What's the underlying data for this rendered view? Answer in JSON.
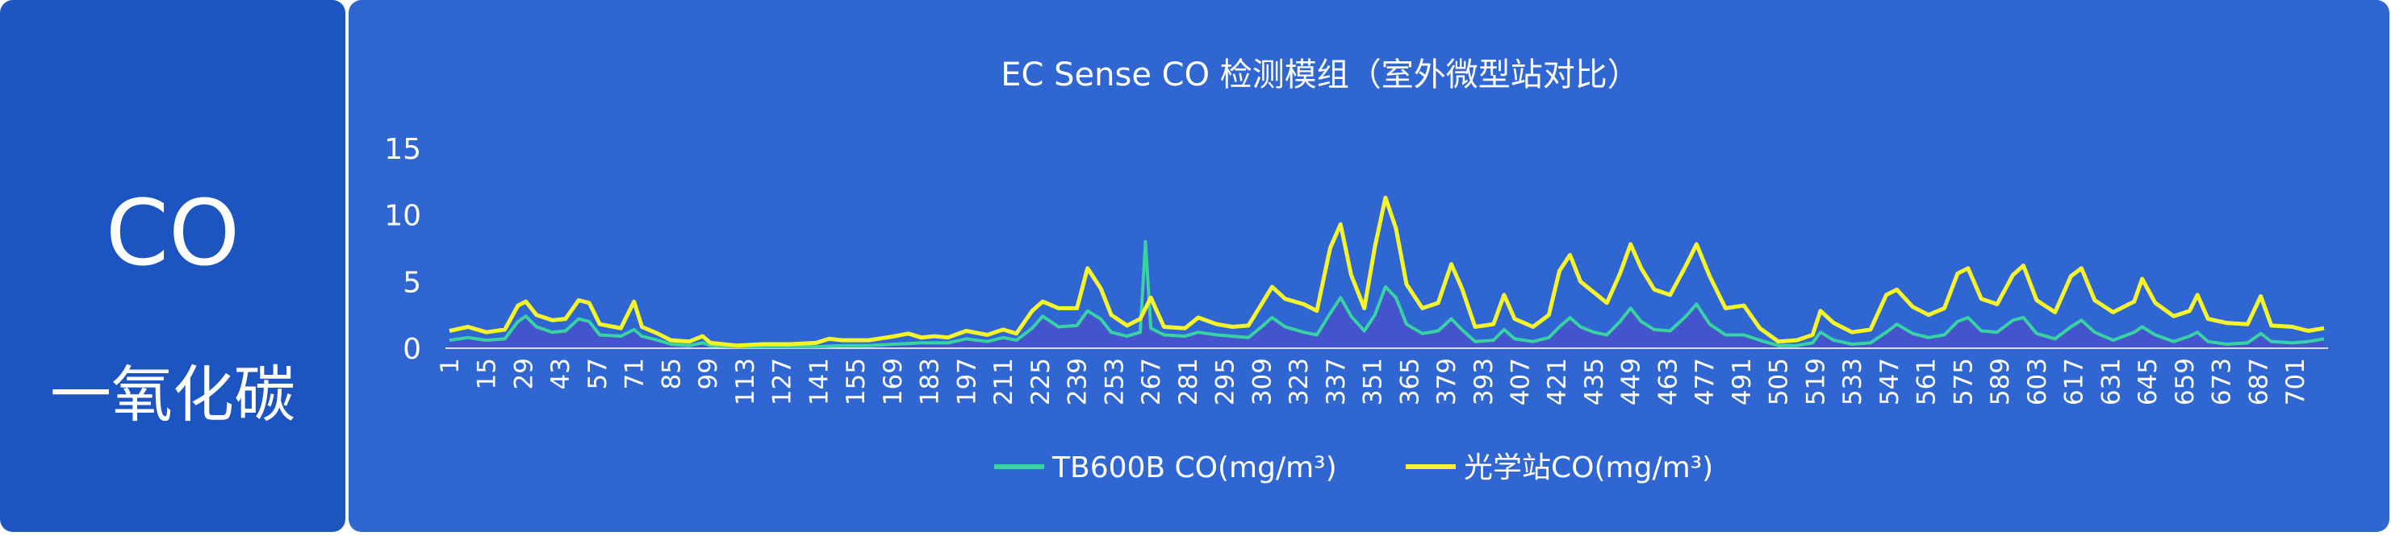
{
  "panel": {
    "code": "CO",
    "name": "一氧化碳"
  },
  "colors": {
    "left_panel": "#1c55c2",
    "chart_panel": "#2f66d2",
    "tb600b": "#39d3a3",
    "station": "#f5f52a",
    "fill": "#4b4fc9",
    "text": "#ffffff"
  },
  "chart_data": {
    "type": "line",
    "title": "EC Sense CO 检测模组（室外微型站对比）",
    "xlabel": "",
    "ylabel": "",
    "ylim": [
      0,
      15
    ],
    "y_ticks": [
      0,
      5,
      10,
      15
    ],
    "x_range": [
      1,
      712
    ],
    "x_ticks": [
      1,
      15,
      29,
      43,
      57,
      71,
      85,
      99,
      113,
      127,
      141,
      155,
      169,
      183,
      197,
      211,
      225,
      239,
      253,
      267,
      281,
      295,
      309,
      323,
      337,
      351,
      365,
      379,
      393,
      407,
      421,
      435,
      449,
      463,
      477,
      491,
      505,
      519,
      533,
      547,
      561,
      575,
      589,
      603,
      617,
      631,
      645,
      659,
      673,
      687,
      701
    ],
    "legend_position": "bottom",
    "grid": false,
    "series": [
      {
        "name": "TB600B CO(mg/m³)",
        "color": "#39d3a3",
        "fill": true,
        "points": [
          [
            1,
            0.6
          ],
          [
            8,
            0.8
          ],
          [
            15,
            0.6
          ],
          [
            22,
            0.7
          ],
          [
            27,
            2.0
          ],
          [
            30,
            2.4
          ],
          [
            34,
            1.6
          ],
          [
            40,
            1.2
          ],
          [
            45,
            1.3
          ],
          [
            50,
            2.2
          ],
          [
            54,
            2.0
          ],
          [
            58,
            1.0
          ],
          [
            66,
            0.9
          ],
          [
            71,
            1.4
          ],
          [
            74,
            0.9
          ],
          [
            80,
            0.6
          ],
          [
            85,
            0.3
          ],
          [
            92,
            0.2
          ],
          [
            97,
            0.4
          ],
          [
            100,
            0.2
          ],
          [
            110,
            0.1
          ],
          [
            120,
            0.1
          ],
          [
            130,
            0.1
          ],
          [
            140,
            0.1
          ],
          [
            150,
            0.2
          ],
          [
            160,
            0.2
          ],
          [
            170,
            0.3
          ],
          [
            180,
            0.4
          ],
          [
            190,
            0.4
          ],
          [
            197,
            0.7
          ],
          [
            205,
            0.5
          ],
          [
            211,
            0.8
          ],
          [
            216,
            0.6
          ],
          [
            222,
            1.5
          ],
          [
            226,
            2.4
          ],
          [
            232,
            1.6
          ],
          [
            239,
            1.7
          ],
          [
            243,
            2.8
          ],
          [
            248,
            2.2
          ],
          [
            252,
            1.2
          ],
          [
            258,
            0.9
          ],
          [
            263,
            1.2
          ],
          [
            265,
            8.0
          ],
          [
            267,
            1.5
          ],
          [
            272,
            1.0
          ],
          [
            280,
            0.9
          ],
          [
            285,
            1.2
          ],
          [
            292,
            1.0
          ],
          [
            298,
            0.9
          ],
          [
            304,
            0.8
          ],
          [
            309,
            1.6
          ],
          [
            313,
            2.3
          ],
          [
            318,
            1.6
          ],
          [
            325,
            1.2
          ],
          [
            330,
            1.0
          ],
          [
            335,
            2.6
          ],
          [
            339,
            3.8
          ],
          [
            343,
            2.4
          ],
          [
            348,
            1.3
          ],
          [
            352,
            2.5
          ],
          [
            356,
            4.6
          ],
          [
            360,
            3.8
          ],
          [
            364,
            1.8
          ],
          [
            370,
            1.1
          ],
          [
            376,
            1.3
          ],
          [
            381,
            2.2
          ],
          [
            385,
            1.4
          ],
          [
            390,
            0.5
          ],
          [
            397,
            0.6
          ],
          [
            401,
            1.4
          ],
          [
            405,
            0.7
          ],
          [
            412,
            0.5
          ],
          [
            418,
            0.8
          ],
          [
            422,
            1.6
          ],
          [
            426,
            2.3
          ],
          [
            430,
            1.6
          ],
          [
            435,
            1.2
          ],
          [
            440,
            1.0
          ],
          [
            445,
            2.0
          ],
          [
            449,
            3.0
          ],
          [
            453,
            2.0
          ],
          [
            458,
            1.4
          ],
          [
            464,
            1.3
          ],
          [
            470,
            2.4
          ],
          [
            474,
            3.3
          ],
          [
            479,
            1.8
          ],
          [
            485,
            1.0
          ],
          [
            492,
            1.0
          ],
          [
            498,
            0.6
          ],
          [
            505,
            0.2
          ],
          [
            512,
            0.2
          ],
          [
            518,
            0.4
          ],
          [
            521,
            1.2
          ],
          [
            526,
            0.6
          ],
          [
            533,
            0.3
          ],
          [
            540,
            0.4
          ],
          [
            546,
            1.2
          ],
          [
            550,
            1.8
          ],
          [
            556,
            1.1
          ],
          [
            562,
            0.8
          ],
          [
            568,
            1.0
          ],
          [
            573,
            2.0
          ],
          [
            577,
            2.3
          ],
          [
            582,
            1.3
          ],
          [
            588,
            1.2
          ],
          [
            594,
            2.1
          ],
          [
            598,
            2.3
          ],
          [
            603,
            1.1
          ],
          [
            610,
            0.7
          ],
          [
            616,
            1.6
          ],
          [
            620,
            2.1
          ],
          [
            625,
            1.2
          ],
          [
            632,
            0.6
          ],
          [
            640,
            1.2
          ],
          [
            643,
            1.6
          ],
          [
            648,
            1.0
          ],
          [
            655,
            0.5
          ],
          [
            661,
            0.9
          ],
          [
            664,
            1.2
          ],
          [
            668,
            0.5
          ],
          [
            675,
            0.3
          ],
          [
            683,
            0.4
          ],
          [
            688,
            1.1
          ],
          [
            692,
            0.5
          ],
          [
            700,
            0.4
          ],
          [
            706,
            0.5
          ],
          [
            712,
            0.7
          ]
        ]
      },
      {
        "name": "光学站CO(mg/m³)",
        "color": "#f5f52a",
        "fill": false,
        "points": [
          [
            1,
            1.3
          ],
          [
            8,
            1.6
          ],
          [
            15,
            1.2
          ],
          [
            22,
            1.4
          ],
          [
            27,
            3.2
          ],
          [
            30,
            3.5
          ],
          [
            34,
            2.5
          ],
          [
            40,
            2.1
          ],
          [
            45,
            2.2
          ],
          [
            50,
            3.6
          ],
          [
            54,
            3.4
          ],
          [
            58,
            1.8
          ],
          [
            66,
            1.5
          ],
          [
            71,
            3.5
          ],
          [
            74,
            1.6
          ],
          [
            80,
            1.1
          ],
          [
            85,
            0.6
          ],
          [
            92,
            0.5
          ],
          [
            97,
            0.9
          ],
          [
            100,
            0.4
          ],
          [
            110,
            0.2
          ],
          [
            120,
            0.3
          ],
          [
            130,
            0.3
          ],
          [
            140,
            0.4
          ],
          [
            145,
            0.7
          ],
          [
            150,
            0.6
          ],
          [
            160,
            0.6
          ],
          [
            170,
            0.9
          ],
          [
            175,
            1.1
          ],
          [
            180,
            0.8
          ],
          [
            185,
            0.9
          ],
          [
            190,
            0.8
          ],
          [
            197,
            1.3
          ],
          [
            205,
            1.0
          ],
          [
            211,
            1.4
          ],
          [
            216,
            1.1
          ],
          [
            222,
            2.8
          ],
          [
            226,
            3.5
          ],
          [
            232,
            3.0
          ],
          [
            239,
            3.0
          ],
          [
            243,
            6.0
          ],
          [
            248,
            4.5
          ],
          [
            252,
            2.5
          ],
          [
            258,
            1.7
          ],
          [
            263,
            2.2
          ],
          [
            267,
            3.8
          ],
          [
            272,
            1.6
          ],
          [
            280,
            1.5
          ],
          [
            285,
            2.3
          ],
          [
            292,
            1.8
          ],
          [
            298,
            1.6
          ],
          [
            304,
            1.7
          ],
          [
            309,
            3.3
          ],
          [
            313,
            4.6
          ],
          [
            318,
            3.7
          ],
          [
            325,
            3.3
          ],
          [
            330,
            2.8
          ],
          [
            335,
            7.5
          ],
          [
            339,
            9.3
          ],
          [
            343,
            5.5
          ],
          [
            348,
            3.0
          ],
          [
            352,
            7.6
          ],
          [
            356,
            11.3
          ],
          [
            360,
            9.0
          ],
          [
            364,
            4.8
          ],
          [
            370,
            3.0
          ],
          [
            376,
            3.4
          ],
          [
            381,
            6.3
          ],
          [
            385,
            4.5
          ],
          [
            390,
            1.6
          ],
          [
            397,
            1.8
          ],
          [
            401,
            4.0
          ],
          [
            405,
            2.2
          ],
          [
            412,
            1.6
          ],
          [
            418,
            2.5
          ],
          [
            422,
            5.8
          ],
          [
            426,
            7.0
          ],
          [
            430,
            5.0
          ],
          [
            435,
            4.2
          ],
          [
            440,
            3.4
          ],
          [
            445,
            5.6
          ],
          [
            449,
            7.8
          ],
          [
            453,
            6.0
          ],
          [
            458,
            4.4
          ],
          [
            464,
            4.0
          ],
          [
            470,
            6.2
          ],
          [
            474,
            7.8
          ],
          [
            479,
            5.4
          ],
          [
            485,
            3.0
          ],
          [
            492,
            3.2
          ],
          [
            498,
            1.5
          ],
          [
            505,
            0.5
          ],
          [
            512,
            0.6
          ],
          [
            518,
            1.0
          ],
          [
            521,
            2.8
          ],
          [
            526,
            1.9
          ],
          [
            533,
            1.2
          ],
          [
            540,
            1.4
          ],
          [
            546,
            4.0
          ],
          [
            550,
            4.4
          ],
          [
            556,
            3.1
          ],
          [
            562,
            2.5
          ],
          [
            568,
            3.0
          ],
          [
            573,
            5.6
          ],
          [
            577,
            6.0
          ],
          [
            582,
            3.7
          ],
          [
            588,
            3.3
          ],
          [
            594,
            5.5
          ],
          [
            598,
            6.2
          ],
          [
            603,
            3.6
          ],
          [
            610,
            2.7
          ],
          [
            616,
            5.4
          ],
          [
            620,
            6.0
          ],
          [
            625,
            3.6
          ],
          [
            632,
            2.7
          ],
          [
            640,
            3.5
          ],
          [
            643,
            5.2
          ],
          [
            648,
            3.4
          ],
          [
            655,
            2.4
          ],
          [
            661,
            2.8
          ],
          [
            664,
            4.0
          ],
          [
            668,
            2.2
          ],
          [
            675,
            1.9
          ],
          [
            683,
            1.8
          ],
          [
            688,
            3.9
          ],
          [
            692,
            1.7
          ],
          [
            700,
            1.6
          ],
          [
            706,
            1.3
          ],
          [
            712,
            1.5
          ]
        ]
      }
    ]
  }
}
